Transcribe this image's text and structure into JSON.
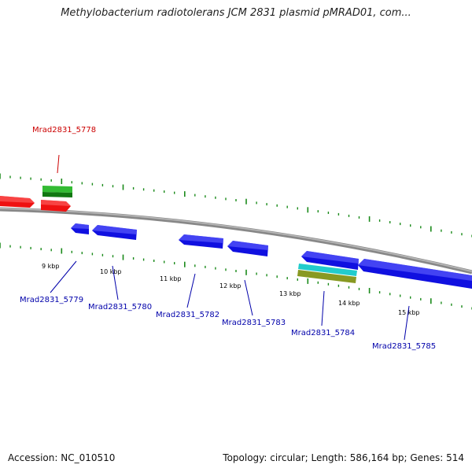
{
  "title": "Methylobacterium radiotolerans JCM 2831 plasmid pMRAD01, com...",
  "footer": {
    "accession": "Accession: NC_010510",
    "summary": "Topology: circular; Length: 586,164 bp; Genes: 514"
  },
  "colors": {
    "forward_gene": "#ee1111",
    "reverse_gene": "#1010e0",
    "gc_green": "#33bb33",
    "cyan_feature": "#22cccc",
    "olive_feature": "#889922",
    "backbone": "#888888",
    "tick_green": "#1a8a1a",
    "label_red": "#cc0000",
    "label_blue": "#0000aa"
  },
  "tick_labels": [
    "9 kbp",
    "10 kbp",
    "11 kbp",
    "12 kbp",
    "13 kbp",
    "14 kbp",
    "15 kbp"
  ],
  "gene_labels": [
    {
      "id": "Mrad2831_5778",
      "strand": "forward"
    },
    {
      "id": "Mrad2831_5779",
      "strand": "reverse"
    },
    {
      "id": "Mrad2831_5780",
      "strand": "reverse"
    },
    {
      "id": "Mrad2831_5782",
      "strand": "reverse"
    },
    {
      "id": "Mrad2831_5783",
      "strand": "reverse"
    },
    {
      "id": "Mrad2831_5784",
      "strand": "reverse"
    },
    {
      "id": "Mrad2831_5785",
      "strand": "reverse"
    }
  ]
}
